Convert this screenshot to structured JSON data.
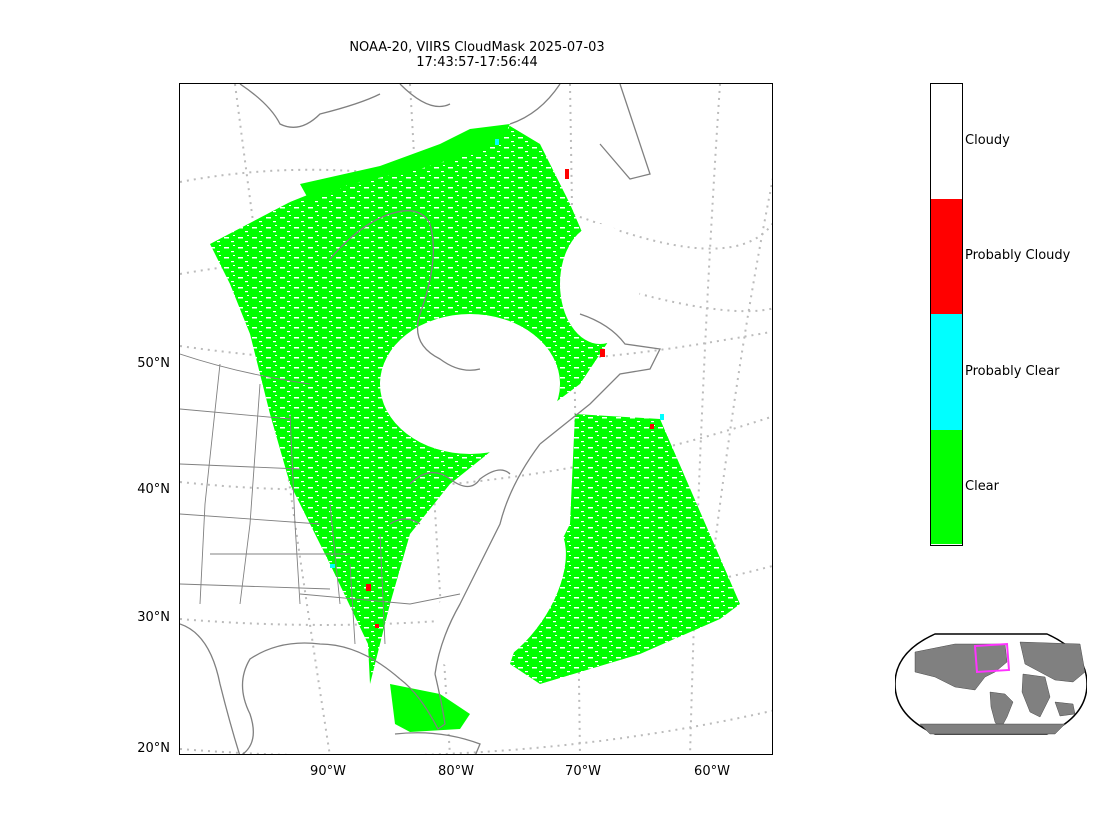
{
  "title": {
    "line1": "NOAA-20, VIIRS CloudMask 2025-07-03",
    "line2": "17:43:57-17:56:44"
  },
  "map": {
    "projection": "lambert-conformal",
    "lat_labels": [
      "50°N",
      "40°N",
      "30°N",
      "20°N"
    ],
    "lon_labels": [
      "90°W",
      "80°W",
      "70°W",
      "60°W"
    ],
    "gridline_style": "dotted-gray",
    "coastline_color": "#808080",
    "swath_main_color": "#00ff00",
    "swath_highlight_colors": [
      "#ff0000",
      "#00ffff"
    ]
  },
  "colorbar": {
    "categories": [
      {
        "label": "Cloudy",
        "color": "#ffffff"
      },
      {
        "label": "Probably Cloudy",
        "color": "#ff0000"
      },
      {
        "label": "Probably Clear",
        "color": "#00ffff"
      },
      {
        "label": "Clear",
        "color": "#00ff00"
      }
    ]
  },
  "inset": {
    "land_color": "#808080",
    "ocean_color": "#ffffff",
    "region_box_color": "#ff33ff"
  }
}
